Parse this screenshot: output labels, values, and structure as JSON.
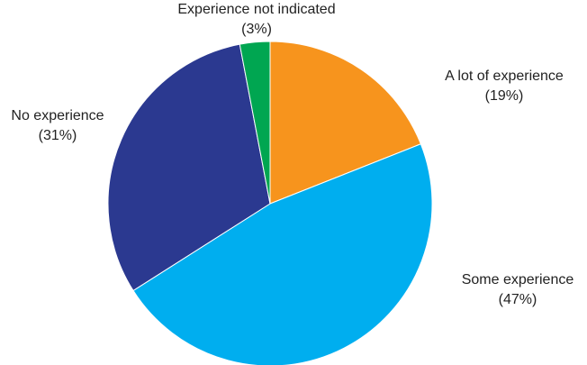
{
  "chart_data": {
    "type": "pie",
    "title": "",
    "start_angle_deg": 0,
    "direction": "clockwise",
    "slices": [
      {
        "label": "A lot of experience",
        "percent_label": "(19%)",
        "value": 19,
        "color": "#F7941D"
      },
      {
        "label": "Some experience",
        "percent_label": "(47%)",
        "value": 47,
        "color": "#00AEEF"
      },
      {
        "label": "No experience",
        "percent_label": "(31%)",
        "value": 31,
        "color": "#2B3990"
      },
      {
        "label": "Experience not indicated",
        "percent_label": "(3%)",
        "value": 3,
        "color": "#00A651"
      }
    ]
  }
}
